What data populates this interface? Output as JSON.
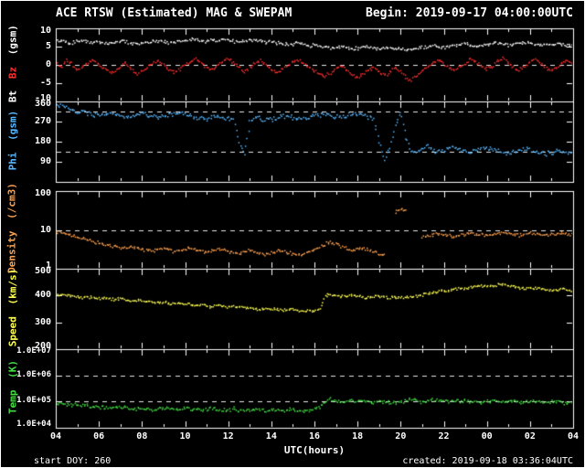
{
  "colors": {
    "background": "#000000",
    "frame": "#ffffff",
    "dashed_line": "#e8e8e8",
    "bt": "#ffffff",
    "bz": "#ff3030",
    "phi": "#59b8ff",
    "density": "#ffa04d",
    "speed": "#ffff55",
    "temp": "#44dd44"
  },
  "chart_data": {
    "type": "scatter",
    "title": "ACE RTSW (Estimated) MAG & SWEPAM",
    "begin_label": "Begin: 2019-09-17 04:00:00UTC",
    "footer": {
      "start_doy": "start DOY: 260",
      "created": "created: 2019-09-18 03:36:04UTC"
    },
    "x_hours_utc": {
      "start": 4,
      "end": 28,
      "step_hours": 0.25,
      "points": 97
    },
    "x_axis": {
      "label": "UTC(hours)",
      "tick_hours": [
        4,
        6,
        8,
        10,
        12,
        14,
        16,
        18,
        20,
        22,
        24,
        26,
        28
      ],
      "tick_labels": [
        "04",
        "06",
        "08",
        "10",
        "12",
        "14",
        "16",
        "18",
        "20",
        "22",
        "00",
        "02",
        "04"
      ]
    },
    "panels": [
      {
        "id": "mag",
        "ylabel_parts": [
          {
            "text": "Bt",
            "color": "#ffffff"
          },
          {
            "text": "Bz",
            "color": "#ff3030"
          },
          {
            "text": "(gsm)",
            "color": "#ffffff"
          }
        ],
        "scale": "linear",
        "ylim": [
          -10,
          10
        ],
        "yticks": [
          {
            "value": 10,
            "label": "10"
          },
          {
            "value": 5,
            "label": "5"
          },
          {
            "value": 0,
            "label": "0"
          },
          {
            "value": -5,
            "label": "-5"
          },
          {
            "value": -10,
            "label": "-10"
          }
        ],
        "dashed_lines": [
          0
        ],
        "series": [
          {
            "name": "Bt",
            "units": "nT",
            "color": "#ffffff",
            "values": [
              6.5,
              6.8,
              6.2,
              6.0,
              6.4,
              6.7,
              6.3,
              5.9,
              6.1,
              6.0,
              5.8,
              6.2,
              6.5,
              6.3,
              6.0,
              5.7,
              5.9,
              6.1,
              6.4,
              6.6,
              6.3,
              6.0,
              6.2,
              6.5,
              6.7,
              6.8,
              7.0,
              6.6,
              6.4,
              6.7,
              6.9,
              7.1,
              6.8,
              6.5,
              6.2,
              6.6,
              6.9,
              6.7,
              6.4,
              6.1,
              6.3,
              6.0,
              5.8,
              5.5,
              5.7,
              5.9,
              5.6,
              5.3,
              5.5,
              5.2,
              4.8,
              4.5,
              4.7,
              5.0,
              4.6,
              4.3,
              4.5,
              4.8,
              5.1,
              4.7,
              4.4,
              4.6,
              4.9,
              4.5,
              4.2,
              4.0,
              4.3,
              4.6,
              4.8,
              5.1,
              5.3,
              5.0,
              4.7,
              4.9,
              5.2,
              5.5,
              5.7,
              5.4,
              5.1,
              5.3,
              5.6,
              5.8,
              6.0,
              5.7,
              5.4,
              5.6,
              5.9,
              6.1,
              5.8,
              5.5,
              5.2,
              5.4,
              5.7,
              5.9,
              5.6,
              5.3,
              5.5
            ]
          },
          {
            "name": "Bz",
            "units": "nT",
            "color": "#ff3030",
            "values": [
              0.5,
              -0.8,
              1.2,
              0.3,
              -1.5,
              -0.6,
              0.8,
              1.5,
              0.2,
              -1.0,
              -2.2,
              -1.6,
              -0.4,
              0.6,
              -1.2,
              -2.5,
              -1.8,
              -0.9,
              0.4,
              1.1,
              0.0,
              -1.3,
              -2.0,
              -1.1,
              0.3,
              1.0,
              1.8,
              0.7,
              -0.5,
              -1.4,
              -0.2,
              0.9,
              1.6,
              0.8,
              -0.6,
              -1.8,
              -0.9,
              0.5,
              1.2,
              0.1,
              -1.1,
              -2.0,
              -1.2,
              -0.3,
              0.8,
              1.4,
              0.4,
              -0.8,
              -1.6,
              -2.4,
              -3.1,
              -2.2,
              -1.0,
              -0.2,
              -1.5,
              -2.8,
              -3.4,
              -2.6,
              -1.4,
              -0.5,
              -1.8,
              -3.0,
              -2.1,
              -0.9,
              -1.9,
              -3.5,
              -4.2,
              -3.0,
              -1.6,
              -0.4,
              0.7,
              1.3,
              0.2,
              -0.9,
              -1.7,
              -0.6,
              0.5,
              1.4,
              0.8,
              -0.3,
              -1.2,
              -0.4,
              0.9,
              1.7,
              0.6,
              -0.7,
              -1.5,
              -0.5,
              0.8,
              1.5,
              0.4,
              -0.8,
              -1.6,
              -0.6,
              0.7,
              1.2,
              0.3
            ]
          }
        ]
      },
      {
        "id": "phi",
        "ylabel_parts": [
          {
            "text": "Phi",
            "color": "#59b8ff"
          },
          {
            "text": "(gsm)",
            "color": "#59b8ff"
          }
        ],
        "scale": "linear",
        "ylim": [
          0,
          360
        ],
        "yticks": [
          {
            "value": 360,
            "label": "360"
          },
          {
            "value": 270,
            "label": "270"
          },
          {
            "value": 180,
            "label": "180"
          },
          {
            "value": 90,
            "label": "90"
          }
        ],
        "dashed_lines": [
          135,
          315
        ],
        "series": [
          {
            "name": "Phi",
            "units": "deg",
            "color": "#59b8ff",
            "values": [
              335,
              345,
              330,
              320,
              310,
              315,
              305,
              300,
              295,
              300,
              310,
              305,
              298,
              290,
              295,
              302,
              308,
              300,
              295,
              288,
              292,
              298,
              305,
              310,
              300,
              295,
              290,
              285,
              280,
              288,
              295,
              290,
              285,
              280,
              180,
              120,
              270,
              290,
              285,
              275,
              280,
              285,
              290,
              295,
              288,
              280,
              285,
              292,
              298,
              300,
              305,
              298,
              292,
              288,
              295,
              302,
              308,
              300,
              290,
              280,
              180,
              100,
              150,
              250,
              320,
              200,
              140,
              130,
              150,
              160,
              145,
              135,
              140,
              150,
              155,
              145,
              135,
              130,
              140,
              148,
              152,
              145,
              138,
              132,
              128,
              135,
              142,
              150,
              144,
              136,
              130,
              125,
              132,
              140,
              135,
              128,
              132
            ]
          }
        ]
      },
      {
        "id": "density",
        "ylabel_parts": [
          {
            "text": "Density",
            "color": "#ffa04d"
          },
          {
            "text": "(/cm3)",
            "color": "#ffa04d"
          }
        ],
        "scale": "log",
        "ylim": [
          1,
          100
        ],
        "yticks": [
          {
            "value": 100,
            "label": "100"
          },
          {
            "value": 10,
            "label": "10"
          },
          {
            "value": 1,
            "label": "1"
          }
        ],
        "dashed_lines": [
          10
        ],
        "series": [
          {
            "name": "Density",
            "units": "/cm3",
            "color": "#ffa04d",
            "values": [
              9.0,
              8.5,
              8.0,
              7.2,
              6.5,
              6.0,
              5.5,
              5.0,
              4.6,
              4.2,
              4.0,
              3.8,
              3.5,
              3.3,
              3.6,
              3.4,
              3.2,
              3.0,
              2.8,
              3.1,
              3.3,
              3.0,
              2.7,
              2.9,
              3.2,
              3.4,
              3.1,
              2.8,
              2.6,
              2.9,
              3.2,
              3.0,
              2.8,
              2.6,
              2.4,
              2.7,
              3.0,
              2.8,
              2.5,
              2.3,
              2.6,
              2.8,
              3.0,
              2.7,
              2.4,
              2.2,
              2.5,
              2.8,
              3.1,
              3.5,
              4.2,
              5.0,
              4.5,
              3.8,
              3.2,
              2.9,
              3.3,
              3.4,
              3.0,
              2.7,
              2.4,
              2.2,
              null,
              28,
              34,
              30,
              null,
              null,
              6.5,
              7.0,
              7.5,
              8.0,
              7.6,
              7.2,
              6.8,
              7.4,
              7.8,
              8.2,
              7.9,
              7.5,
              7.1,
              7.7,
              8.1,
              8.5,
              8.0,
              7.6,
              7.3,
              7.8,
              8.3,
              8.0,
              7.6,
              7.2,
              7.5,
              7.9,
              8.2,
              7.8,
              7.4
            ]
          }
        ]
      },
      {
        "id": "speed",
        "ylabel_parts": [
          {
            "text": "Speed",
            "color": "#ffff55"
          },
          {
            "text": "(km/s)",
            "color": "#ffff55"
          }
        ],
        "scale": "linear",
        "ylim": [
          200,
          500
        ],
        "yticks": [
          {
            "value": 500,
            "label": "500"
          },
          {
            "value": 400,
            "label": "400"
          },
          {
            "value": 300,
            "label": "300"
          },
          {
            "value": 200,
            "label": "200"
          }
        ],
        "dashed_lines": [],
        "series": [
          {
            "name": "Speed",
            "units": "km/s",
            "color": "#ffff55",
            "values": [
              405,
              402,
              398,
              400,
              396,
              393,
              395,
              391,
              389,
              392,
              388,
              385,
              387,
              383,
              380,
              382,
              378,
              380,
              376,
              373,
              375,
              371,
              369,
              372,
              368,
              366,
              363,
              365,
              361,
              359,
              362,
              358,
              356,
              358,
              355,
              352,
              354,
              351,
              349,
              352,
              348,
              350,
              347,
              345,
              348,
              344,
              342,
              345,
              343,
              352,
              398,
              405,
              400,
              396,
              399,
              402,
              398,
              395,
              392,
              396,
              399,
              394,
              391,
              395,
              390,
              392,
              395,
              398,
              402,
              405,
              410,
              415,
              418,
              420,
              424,
              428,
              425,
              430,
              434,
              438,
              433,
              436,
              440,
              444,
              438,
              434,
              430,
              426,
              430,
              428,
              424,
              420,
              417,
              421,
              425,
              419,
              416
            ]
          }
        ]
      },
      {
        "id": "temp",
        "ylabel_parts": [
          {
            "text": "Temp",
            "color": "#44dd44"
          },
          {
            "text": "(K)",
            "color": "#44dd44"
          }
        ],
        "scale": "log",
        "ylim": [
          10000.0,
          10000000.0
        ],
        "yticks": [
          {
            "value": 10000000.0,
            "label": "1.0E+07"
          },
          {
            "value": 1000000.0,
            "label": "1.0E+06"
          },
          {
            "value": 100000.0,
            "label": "1.0E+05"
          },
          {
            "value": 10000.0,
            "label": "1.0E+04"
          }
        ],
        "dashed_lines": [
          1000000.0,
          100000.0
        ],
        "series": [
          {
            "name": "Temp",
            "units": "K",
            "color": "#44dd44",
            "values": [
              90000.0,
              85000.0,
              80000.0,
              75000.0,
              70000.0,
              72000.0,
              68000.0,
              65000.0,
              62000.0,
              60000.0,
              58000.0,
              63000.0,
              60000.0,
              55000.0,
              52000.0,
              56000.0,
              53000.0,
              50000.0,
              48000.0,
              52000.0,
              55000.0,
              51000.0,
              47000.0,
              50000.0,
              54000.0,
              52000.0,
              49000.0,
              46000.0,
              50000.0,
              53000.0,
              48000.0,
              45000.0,
              49000.0,
              52000.0,
              48000.0,
              44000.0,
              47000.0,
              50000.0,
              46000.0,
              43000.0,
              47000.0,
              45000.0,
              42000.0,
              46000.0,
              49000.0,
              45000.0,
              42000.0,
              46000.0,
              50000.0,
              60000.0,
              90000.0,
              130000.0,
              110000.0,
              95000.0,
              100000.0,
              120000.0,
              110000.0,
              100000.0,
              90000.0,
              95000.0,
              105000.0,
              98000.0,
              88000.0,
              93000.0,
              100000.0,
              110000.0,
              120000.0,
              105000.0,
              95000.0,
              100000.0,
              110000.0,
              115000.0,
              105000.0,
              100000.0,
              95000.0,
              105000.0,
              110000.0,
              100000.0,
              92000.0,
              98000.0,
              105000.0,
              110000.0,
              100000.0,
              94000.0,
              100000.0,
              108000.0,
              98000.0,
              92000.0,
              99000.0,
              105000.0,
              96000.0,
              90000.0,
              97000.0,
              103000.0,
              95000.0,
              89000.0,
              96000.0
            ]
          }
        ]
      }
    ]
  }
}
